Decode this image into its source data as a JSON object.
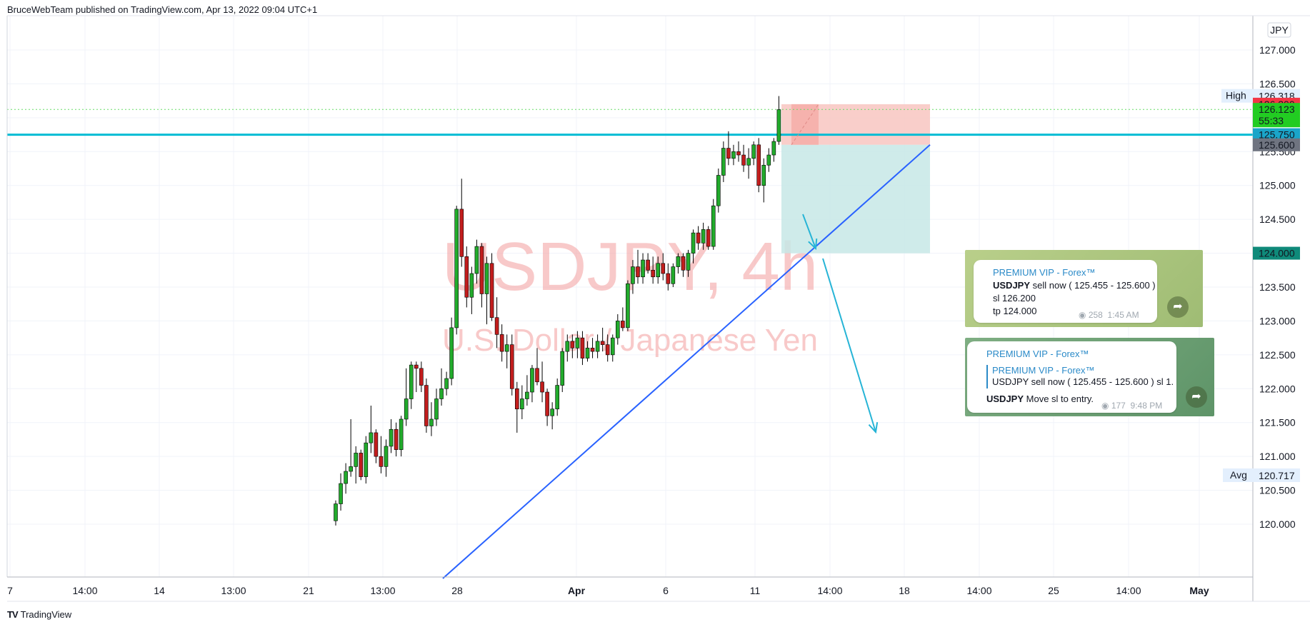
{
  "header": {
    "published_text": "BruceWebTeam published on TradingView.com, Apr 13, 2022 09:04 UTC+1"
  },
  "footer": {
    "logo_text": "TV",
    "brand": "TradingView"
  },
  "colors": {
    "up": "#22ab2c",
    "down": "#c21d1d",
    "horizontal_line": "#00bcd4",
    "trendline": "#2962ff",
    "arrow": "#26b4d6",
    "stop_zone": "#f8c6c1",
    "target_zone": "#c7e8e6",
    "label_red": "#f23645",
    "label_green": "#22cc22",
    "label_cyan": "#1aa5c9",
    "label_gray": "#6f7480",
    "label_teal": "#0f8a7a"
  },
  "chart_data": {
    "type": "candlestick",
    "title": "USDJPY, 4h",
    "subtitle": "U.S. Dollar / Japanese Yen",
    "currency": "JPY",
    "ylim": [
      119.9,
      127.6
    ],
    "y_ticks": [
      "127.000",
      "126.500",
      "126.000",
      "125.500",
      "125.000",
      "124.500",
      "124.000",
      "123.500",
      "123.000",
      "122.500",
      "122.000",
      "121.500",
      "121.000",
      "120.500",
      "120.000"
    ],
    "x_ticks": [
      "7",
      "14:00",
      "14",
      "13:00",
      "21",
      "13:00",
      "28",
      "Apr",
      "6",
      "11",
      "14:00",
      "18",
      "14:00",
      "25",
      "14:00",
      "May"
    ],
    "price_labels": {
      "high": {
        "label": "High",
        "value": "126.318"
      },
      "stop": "126.200",
      "last": "126.123",
      "countdown": "55:33",
      "line": "125.750",
      "entry": "125.600",
      "target": "124.000",
      "avg": {
        "label": "Avg",
        "value": "120.717"
      }
    },
    "candles": [
      [
        120.05,
        120.35,
        119.98,
        120.3
      ],
      [
        120.3,
        120.75,
        120.2,
        120.6
      ],
      [
        120.6,
        120.9,
        120.45,
        120.78
      ],
      [
        120.78,
        121.55,
        120.7,
        120.85
      ],
      [
        120.85,
        121.15,
        120.6,
        121.05
      ],
      [
        121.05,
        121.1,
        120.65,
        120.7
      ],
      [
        120.7,
        121.3,
        120.6,
        121.2
      ],
      [
        121.2,
        121.75,
        121.05,
        121.35
      ],
      [
        121.35,
        121.4,
        120.9,
        121.0
      ],
      [
        121.0,
        121.3,
        120.75,
        120.85
      ],
      [
        120.85,
        121.25,
        120.7,
        121.15
      ],
      [
        121.15,
        121.55,
        121.05,
        121.4
      ],
      [
        121.4,
        121.5,
        121.0,
        121.1
      ],
      [
        121.1,
        121.6,
        121.0,
        121.55
      ],
      [
        121.55,
        122.3,
        121.45,
        121.85
      ],
      [
        121.85,
        122.4,
        121.7,
        122.35
      ],
      [
        122.35,
        122.4,
        121.95,
        122.3
      ],
      [
        122.3,
        122.4,
        121.95,
        122.05
      ],
      [
        122.05,
        122.15,
        121.35,
        121.45
      ],
      [
        121.45,
        121.8,
        121.3,
        121.55
      ],
      [
        121.55,
        122.0,
        121.45,
        121.85
      ],
      [
        121.85,
        122.3,
        121.75,
        122.0
      ],
      [
        122.0,
        122.25,
        121.9,
        122.15
      ],
      [
        122.15,
        123.05,
        122.05,
        122.9
      ],
      [
        122.9,
        124.7,
        122.8,
        124.65
      ],
      [
        124.65,
        125.1,
        123.8,
        123.95
      ],
      [
        123.95,
        124.1,
        123.2,
        123.35
      ],
      [
        123.35,
        123.8,
        123.1,
        123.7
      ],
      [
        123.7,
        124.2,
        123.55,
        124.1
      ],
      [
        124.1,
        124.15,
        123.2,
        123.4
      ],
      [
        123.4,
        123.95,
        122.95,
        123.85
      ],
      [
        123.85,
        124.0,
        123.0,
        123.05
      ],
      [
        123.05,
        123.35,
        122.6,
        122.8
      ],
      [
        122.8,
        122.95,
        122.4,
        122.55
      ],
      [
        122.55,
        122.8,
        122.3,
        122.65
      ],
      [
        122.65,
        122.8,
        121.9,
        122.0
      ],
      [
        122.0,
        122.1,
        121.35,
        121.7
      ],
      [
        121.7,
        122.05,
        121.55,
        121.85
      ],
      [
        121.85,
        122.2,
        121.75,
        121.95
      ],
      [
        121.95,
        122.35,
        121.8,
        122.3
      ],
      [
        122.3,
        122.6,
        122.05,
        122.1
      ],
      [
        122.1,
        122.4,
        121.8,
        121.95
      ],
      [
        121.95,
        122.0,
        121.45,
        121.6
      ],
      [
        121.6,
        121.8,
        121.4,
        121.7
      ],
      [
        121.7,
        122.15,
        121.6,
        122.05
      ],
      [
        122.05,
        122.6,
        121.95,
        122.55
      ],
      [
        122.55,
        122.8,
        122.4,
        122.7
      ],
      [
        122.7,
        122.8,
        122.45,
        122.6
      ],
      [
        122.6,
        122.85,
        122.45,
        122.75
      ],
      [
        122.75,
        122.85,
        122.35,
        122.45
      ],
      [
        122.45,
        122.7,
        122.4,
        122.6
      ],
      [
        122.6,
        122.75,
        122.45,
        122.55
      ],
      [
        122.55,
        122.8,
        122.45,
        122.7
      ],
      [
        122.7,
        122.9,
        122.55,
        122.65
      ],
      [
        122.65,
        122.8,
        122.4,
        122.5
      ],
      [
        122.5,
        122.8,
        122.4,
        122.75
      ],
      [
        122.75,
        123.1,
        122.65,
        123.0
      ],
      [
        123.0,
        123.2,
        122.85,
        122.9
      ],
      [
        122.9,
        123.6,
        122.85,
        123.55
      ],
      [
        123.55,
        123.9,
        123.4,
        123.8
      ],
      [
        123.8,
        124.05,
        123.55,
        123.65
      ],
      [
        123.65,
        124.0,
        123.55,
        123.9
      ],
      [
        123.9,
        124.0,
        123.7,
        123.75
      ],
      [
        123.75,
        123.95,
        123.55,
        123.65
      ],
      [
        123.65,
        123.95,
        123.55,
        123.85
      ],
      [
        123.85,
        124.0,
        123.6,
        123.7
      ],
      [
        123.7,
        123.85,
        123.45,
        123.55
      ],
      [
        123.55,
        123.85,
        123.5,
        123.8
      ],
      [
        123.8,
        124.0,
        123.7,
        123.95
      ],
      [
        123.95,
        124.0,
        123.65,
        123.75
      ],
      [
        123.75,
        124.05,
        123.65,
        124.0
      ],
      [
        124.0,
        124.35,
        123.85,
        124.3
      ],
      [
        124.3,
        124.4,
        124.05,
        124.15
      ],
      [
        124.15,
        124.45,
        124.05,
        124.35
      ],
      [
        124.35,
        124.4,
        124.05,
        124.1
      ],
      [
        124.1,
        124.8,
        124.05,
        124.7
      ],
      [
        124.7,
        125.25,
        124.6,
        125.15
      ],
      [
        125.15,
        125.65,
        125.05,
        125.55
      ],
      [
        125.55,
        125.8,
        125.3,
        125.4
      ],
      [
        125.4,
        125.6,
        125.3,
        125.5
      ],
      [
        125.5,
        125.65,
        125.35,
        125.45
      ],
      [
        125.45,
        125.6,
        125.2,
        125.3
      ],
      [
        125.3,
        125.55,
        125.1,
        125.4
      ],
      [
        125.4,
        125.65,
        125.3,
        125.6
      ],
      [
        125.6,
        125.7,
        124.9,
        125.0
      ],
      [
        125.0,
        125.4,
        124.75,
        125.3
      ],
      [
        125.3,
        125.55,
        125.2,
        125.45
      ],
      [
        125.45,
        125.7,
        125.35,
        125.65
      ],
      [
        125.65,
        126.32,
        125.6,
        126.12
      ]
    ]
  },
  "telegram": [
    {
      "channel": "PREMIUM VIP - Forex™",
      "line1_bold": "USDJPY",
      "line1_rest": " sell now ( 125.455 - 125.600 )",
      "line2": "sl 126.200",
      "line3": "tp 124.000",
      "views": "258",
      "time": "1:45 AM"
    },
    {
      "channel": "PREMIUM VIP - Forex™",
      "quote_channel": "PREMIUM VIP - Forex™",
      "quote_text": "USDJPY sell now ( 125.455 - 125.600 ) sl 1...",
      "msg_bold": "USDJPY",
      "msg_rest": " Move sl to entry.",
      "views": "177",
      "time": "9:48 PM"
    }
  ]
}
